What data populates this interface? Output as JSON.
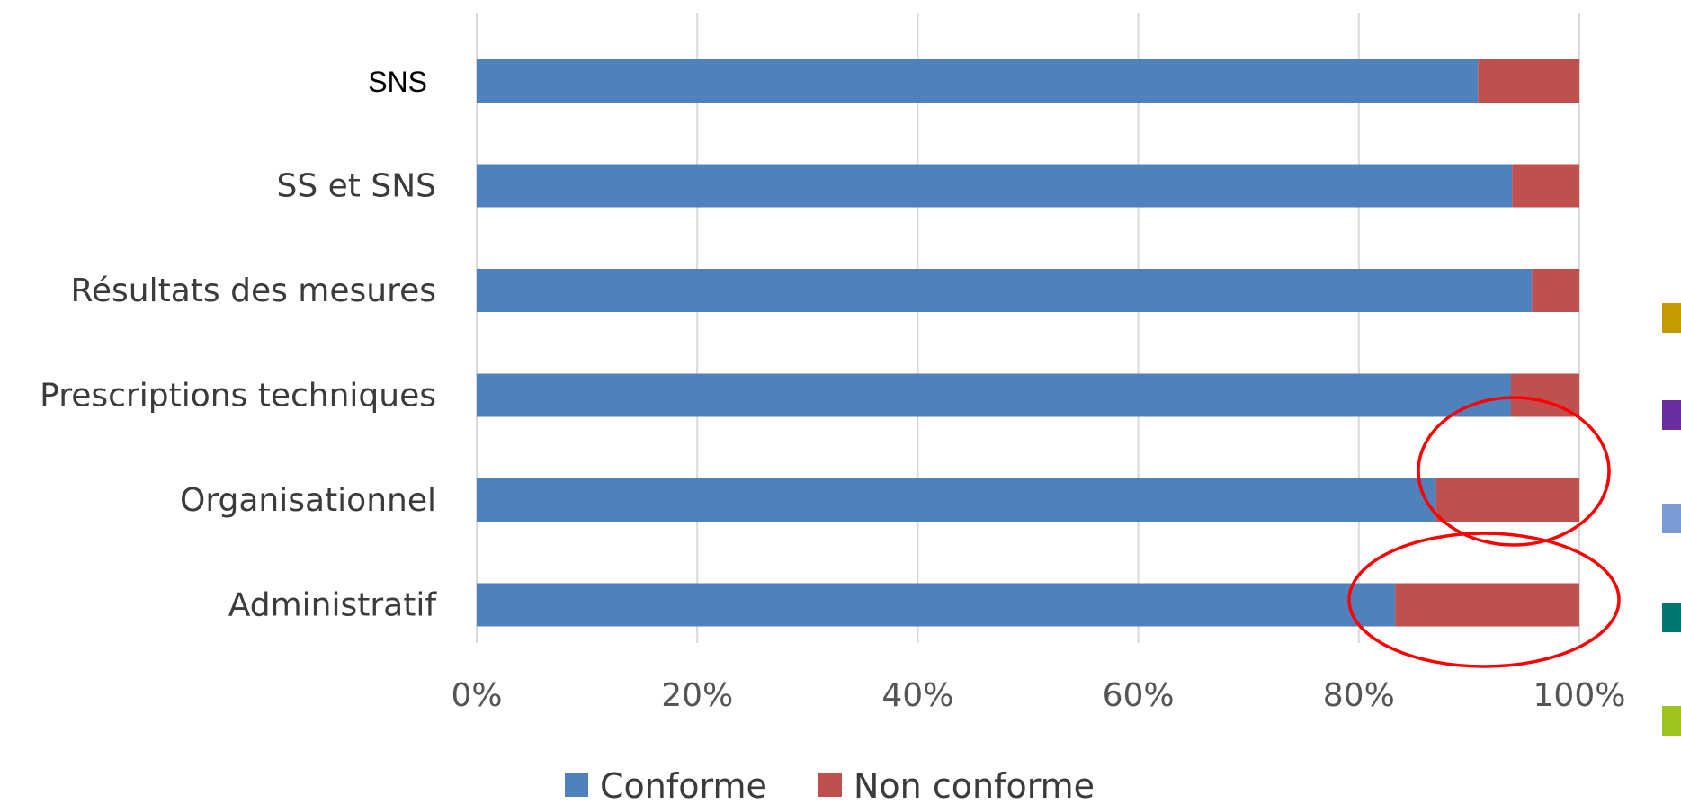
{
  "chart_data": {
    "type": "bar",
    "orientation": "horizontal",
    "stacked": "percent",
    "categories": [
      "SNS",
      "SS et SNS",
      "Résultats des mesures",
      "Prescriptions techniques",
      "Organisationnel",
      "Administratif"
    ],
    "series": [
      {
        "name": "Conforme",
        "values": [
          90.8,
          93.9,
          95.7,
          93.8,
          87.0,
          83.3
        ],
        "color": "#4F81BD"
      },
      {
        "name": "Non conforme",
        "values": [
          9.2,
          6.1,
          4.3,
          6.2,
          13.0,
          16.7
        ],
        "color": "#C0504D"
      }
    ],
    "xlim": [
      0,
      100
    ],
    "xticks": [
      0,
      20,
      40,
      60,
      80,
      100
    ],
    "xtick_labels": [
      "0%",
      "20%",
      "40%",
      "60%",
      "80%",
      "100%"
    ],
    "grid": "vertical",
    "legend": "bottom",
    "annotations": [
      {
        "type": "ellipse",
        "color": "#FF0000",
        "around_category": "Organisationnel"
      },
      {
        "type": "ellipse",
        "color": "#FF0000",
        "around_category": "Administratif"
      }
    ],
    "side_markers": {
      "colors": [
        "#C49A00",
        "#6B2E9E",
        "#7B9BD4",
        "#00776E",
        "#9BC41E"
      ]
    }
  }
}
